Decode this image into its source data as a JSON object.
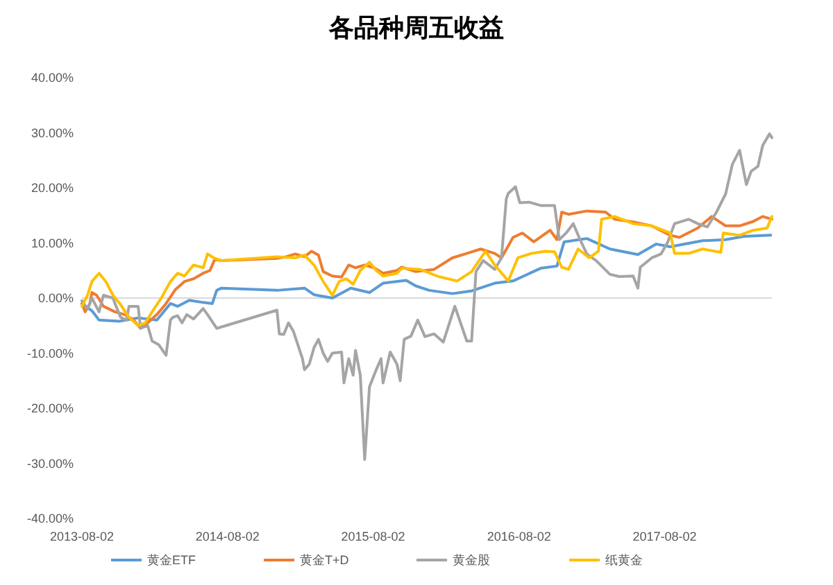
{
  "chart_data": {
    "type": "line",
    "title": "各品种周五收益",
    "legend": "bottom",
    "xlim": [
      "2013-08-02",
      "2018-04-28"
    ],
    "xticks": [
      "2013-08-02",
      "2014-08-02",
      "2015-08-02",
      "2016-08-02",
      "2017-08-02"
    ],
    "ylim": [
      -40,
      40
    ],
    "yticks": [
      {
        "value": -40,
        "label": "-40.00%"
      },
      {
        "value": -30,
        "label": "-30.00%"
      },
      {
        "value": -20,
        "label": "-20.00%"
      },
      {
        "value": -10,
        "label": "-10.00%"
      },
      {
        "value": 0,
        "label": "0.00%"
      },
      {
        "value": 10,
        "label": "10.00%"
      },
      {
        "value": 20,
        "label": "20.00%"
      },
      {
        "value": 30,
        "label": "30.00%"
      },
      {
        "value": 40,
        "label": "40.00%"
      }
    ],
    "series": [
      {
        "name": "黄金ETF",
        "color": "#5b9bd5",
        "x": [
          "2013-08-02",
          "2013-08-27",
          "2013-09-14",
          "2013-11-05",
          "2013-12-21",
          "2014-02-06",
          "2014-03-12",
          "2014-03-30",
          "2014-04-28",
          "2014-06-02",
          "2014-06-25",
          "2014-07-06",
          "2014-07-18",
          "2014-12-04",
          "2015-02-11",
          "2015-03-07",
          "2015-04-22",
          "2015-06-07",
          "2015-07-24",
          "2015-08-27",
          "2015-10-24",
          "2015-11-17",
          "2015-12-21",
          "2016-02-17",
          "2016-04-05",
          "2016-06-02",
          "2016-07-18",
          "2016-09-25",
          "2016-11-05",
          "2016-11-23",
          "2017-01-19",
          "2017-03-18",
          "2017-05-27",
          "2017-07-12",
          "2017-08-16",
          "2017-11-05",
          "2018-01-02",
          "2018-02-17",
          "2018-04-25"
        ],
        "values": [
          -1,
          -2.3,
          -4,
          -4.2,
          -3.6,
          -4,
          -1,
          -1.5,
          -0.4,
          -0.8,
          -1,
          1.4,
          1.8,
          1.4,
          1.8,
          0.6,
          0,
          1.8,
          1,
          2.7,
          3.2,
          2.2,
          1.4,
          0.8,
          1.3,
          2.7,
          3.1,
          5.4,
          5.8,
          10.2,
          10.8,
          8.9,
          7.9,
          9.8,
          9.3,
          10.4,
          10.6,
          11.2,
          11.4
        ]
      },
      {
        "name": "黄金T+D",
        "color": "#ed7d31",
        "x": [
          "2013-08-02",
          "2013-08-10",
          "2013-08-22",
          "2013-08-27",
          "2013-09-08",
          "2013-09-25",
          "2013-10-24",
          "2013-11-17",
          "2013-12-10",
          "2013-12-27",
          "2014-01-14",
          "2014-02-06",
          "2014-03-01",
          "2014-03-24",
          "2014-04-16",
          "2014-05-09",
          "2014-06-02",
          "2014-06-19",
          "2014-07-01",
          "2014-07-18",
          "2014-12-04",
          "2014-12-27",
          "2015-01-19",
          "2015-02-11",
          "2015-03-01",
          "2015-03-18",
          "2015-03-30",
          "2015-04-22",
          "2015-05-15",
          "2015-06-02",
          "2015-06-19",
          "2015-07-12",
          "2015-08-04",
          "2015-08-27",
          "2015-10-01",
          "2015-10-13",
          "2015-11-17",
          "2016-01-02",
          "2016-02-17",
          "2016-03-24",
          "2016-04-28",
          "2016-06-02",
          "2016-06-19",
          "2016-07-18",
          "2016-08-10",
          "2016-09-08",
          "2016-10-19",
          "2016-11-05",
          "2016-11-17",
          "2016-12-04",
          "2017-01-19",
          "2017-03-07",
          "2017-03-30",
          "2017-05-15",
          "2017-07-01",
          "2017-08-16",
          "2017-09-08",
          "2017-10-24",
          "2017-11-28",
          "2018-01-02",
          "2018-02-06",
          "2018-03-12",
          "2018-04-05",
          "2018-04-28"
        ],
        "values": [
          -1,
          -2.5,
          -1,
          1,
          0.5,
          -1.5,
          -2.5,
          -3,
          -4,
          -5.5,
          -4.5,
          -3,
          -1,
          1.5,
          3,
          3.5,
          4.5,
          5,
          7,
          6.8,
          7.2,
          7.5,
          8,
          7.5,
          8.5,
          7.8,
          4.8,
          4,
          3.8,
          6,
          5.5,
          6,
          5.5,
          4.5,
          5,
          5.6,
          4.8,
          5.2,
          7.3,
          8.1,
          8.9,
          8.1,
          7.3,
          11,
          11.8,
          10.2,
          12.3,
          10.6,
          15.6,
          15.2,
          15.8,
          15.6,
          14.3,
          13.8,
          13.1,
          11.4,
          11,
          12.7,
          14.8,
          13.1,
          13.1,
          13.9,
          14.8,
          14.3
        ]
      },
      {
        "name": "黄金股",
        "color": "#a5a5a5",
        "x": [
          "2013-08-02",
          "2013-08-16",
          "2013-08-27",
          "2013-09-14",
          "2013-09-25",
          "2013-10-19",
          "2013-10-24",
          "2013-11-07",
          "2013-11-22",
          "2013-11-28",
          "2013-12-21",
          "2013-12-27",
          "2014-01-14",
          "2014-01-25",
          "2014-02-11",
          "2014-03-01",
          "2014-03-12",
          "2014-03-18",
          "2014-03-30",
          "2014-04-10",
          "2014-04-22",
          "2014-05-09",
          "2014-06-02",
          "2014-06-13",
          "2014-07-06",
          "2014-12-04",
          "2014-12-10",
          "2014-12-21",
          "2015-01-02",
          "2015-01-14",
          "2015-02-06",
          "2015-02-11",
          "2015-02-23",
          "2015-03-07",
          "2015-03-18",
          "2015-03-30",
          "2015-04-10",
          "2015-04-22",
          "2015-05-15",
          "2015-05-21",
          "2015-06-02",
          "2015-06-13",
          "2015-06-19",
          "2015-07-01",
          "2015-07-12",
          "2015-07-24",
          "2015-08-10",
          "2015-08-22",
          "2015-08-27",
          "2015-09-14",
          "2015-10-01",
          "2015-10-09",
          "2015-10-19",
          "2015-11-05",
          "2015-11-22",
          "2015-12-10",
          "2016-01-02",
          "2016-01-25",
          "2016-02-23",
          "2016-03-24",
          "2016-04-05",
          "2016-04-16",
          "2016-05-04",
          "2016-06-02",
          "2016-06-19",
          "2016-07-01",
          "2016-07-06",
          "2016-07-24",
          "2016-08-04",
          "2016-08-27",
          "2016-09-25",
          "2016-10-30",
          "2016-11-11",
          "2016-11-28",
          "2016-12-16",
          "2017-01-02",
          "2017-01-19",
          "2017-02-11",
          "2017-03-18",
          "2017-04-10",
          "2017-05-15",
          "2017-05-27",
          "2017-06-02",
          "2017-07-01",
          "2017-07-24",
          "2017-08-10",
          "2017-08-27",
          "2017-10-01",
          "2017-10-24",
          "2017-11-17",
          "2017-12-10",
          "2018-01-02",
          "2018-01-19",
          "2018-02-06",
          "2018-02-23",
          "2018-03-07",
          "2018-03-24",
          "2018-04-05",
          "2018-04-22",
          "2018-04-28"
        ],
        "values": [
          -0.5,
          -2,
          0,
          -2.5,
          0.5,
          0,
          -1,
          -3.5,
          -4,
          -1.5,
          -1.5,
          -5.5,
          -5,
          -7.8,
          -8.5,
          -10.4,
          -4,
          -3.5,
          -3.2,
          -4.5,
          -3,
          -3.8,
          -1.9,
          -3,
          -5.5,
          -2.2,
          -6.5,
          -6.6,
          -4.5,
          -6,
          -11,
          -13,
          -12,
          -9,
          -7.5,
          -10,
          -11.5,
          -10,
          -9.8,
          -15.4,
          -11,
          -14,
          -9.5,
          -14,
          -29.3,
          -16.1,
          -13,
          -11,
          -15.4,
          -9.8,
          -12,
          -15,
          -7.5,
          -6.9,
          -4,
          -7,
          -6.5,
          -8,
          -1.5,
          -7.8,
          -7.8,
          4.8,
          6.8,
          5.2,
          7.3,
          18,
          19,
          20.2,
          17.3,
          17.4,
          16.8,
          16.8,
          10.6,
          11.8,
          13.5,
          10.6,
          8,
          6.8,
          4.3,
          3.9,
          4,
          1.8,
          5.6,
          7.3,
          8,
          10.2,
          13.5,
          14.3,
          13.5,
          12.9,
          15.6,
          18.9,
          24.3,
          26.8,
          20.6,
          23,
          23.9,
          27.7,
          29.8,
          29.1
        ]
      },
      {
        "name": "纸黄金",
        "color": "#ffc000",
        "x": [
          "2013-08-02",
          "2013-08-16",
          "2013-08-27",
          "2013-09-14",
          "2013-10-01",
          "2013-10-19",
          "2013-11-05",
          "2013-11-28",
          "2013-12-21",
          "2014-01-08",
          "2014-01-25",
          "2014-02-17",
          "2014-03-12",
          "2014-03-30",
          "2014-04-16",
          "2014-05-09",
          "2014-06-02",
          "2014-06-13",
          "2014-07-01",
          "2014-07-18",
          "2014-12-04",
          "2015-01-19",
          "2015-02-11",
          "2015-03-07",
          "2015-03-30",
          "2015-04-22",
          "2015-05-09",
          "2015-05-27",
          "2015-06-13",
          "2015-07-01",
          "2015-07-24",
          "2015-08-10",
          "2015-08-27",
          "2015-10-01",
          "2015-10-13",
          "2015-11-28",
          "2016-01-13",
          "2016-02-29",
          "2016-04-05",
          "2016-05-10",
          "2016-06-02",
          "2016-07-06",
          "2016-07-30",
          "2016-09-02",
          "2016-10-07",
          "2016-10-30",
          "2016-11-17",
          "2016-12-04",
          "2016-12-28",
          "2017-01-25",
          "2017-02-17",
          "2017-02-25",
          "2017-03-30",
          "2017-05-15",
          "2017-07-01",
          "2017-08-16",
          "2017-08-27",
          "2017-10-01",
          "2017-11-05",
          "2017-12-21",
          "2017-12-27",
          "2018-02-06",
          "2018-03-12",
          "2018-04-16",
          "2018-04-28"
        ],
        "values": [
          -1.5,
          0.5,
          3,
          4.5,
          3,
          0.5,
          -1,
          -3.5,
          -5,
          -4.5,
          -2.5,
          0,
          3,
          4.5,
          4,
          6,
          5.5,
          8,
          7.2,
          6.8,
          7.5,
          7.3,
          7.8,
          6,
          3,
          0.5,
          3,
          3.5,
          2.5,
          5,
          6.5,
          5,
          4,
          4.5,
          5.4,
          5.2,
          3.9,
          3.1,
          4.8,
          8.5,
          6,
          3.1,
          7.3,
          8.1,
          8.5,
          8.4,
          5.6,
          5.2,
          8.9,
          7.3,
          8.5,
          14.3,
          14.8,
          13.5,
          13.1,
          11.8,
          8.1,
          8.1,
          8.9,
          8.3,
          11.8,
          11.4,
          12.3,
          12.7,
          14.8
        ]
      }
    ]
  }
}
